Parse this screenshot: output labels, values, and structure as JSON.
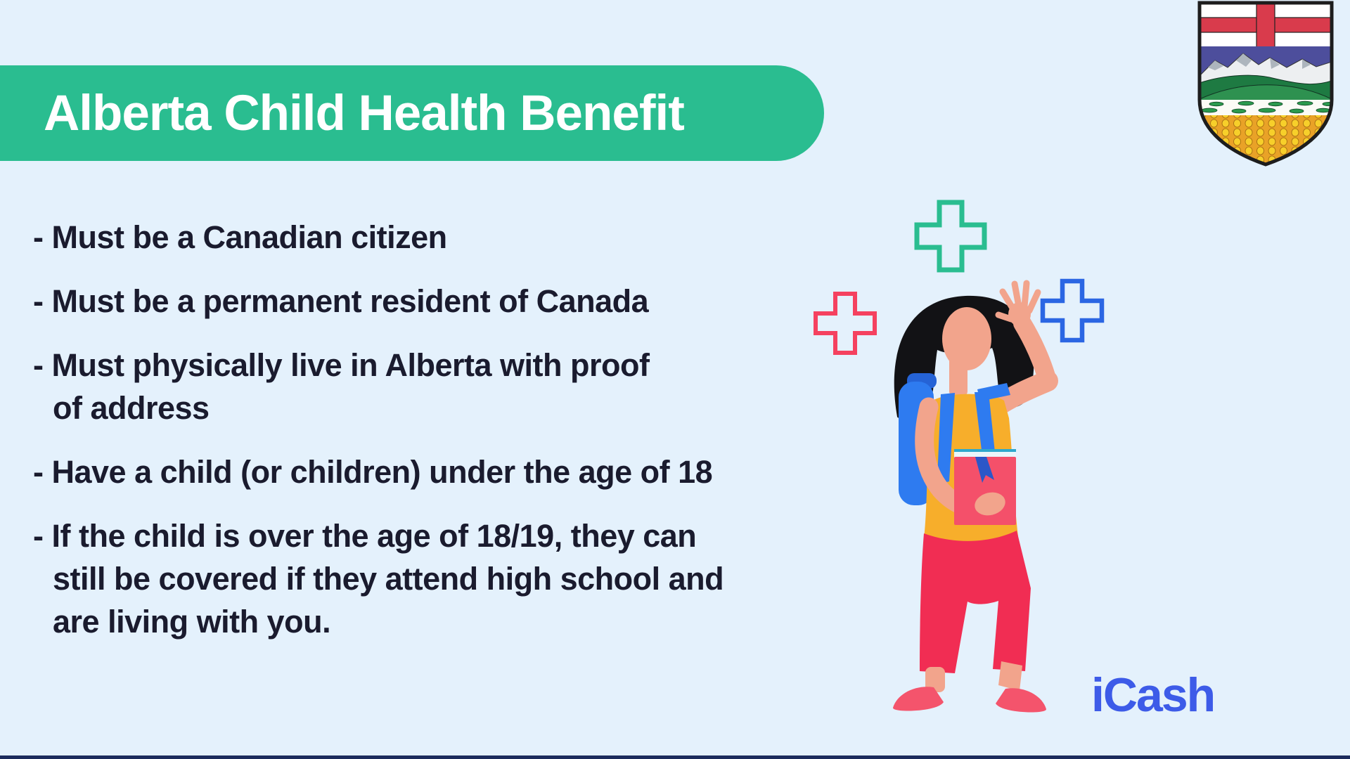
{
  "theme": {
    "background": "#E4F1FC",
    "banner_green": "#2ABD90",
    "banner_text": "#FFFFFF",
    "text_dark": "#1A1B2E",
    "logo_blue": "#3D5BE8",
    "bottom_bar": "#1B2B5C",
    "cross_green": "#2ABD90",
    "cross_red": "#F5415F",
    "cross_blue": "#2B66E3"
  },
  "header": {
    "title": "Alberta Child Health Benefit"
  },
  "bullets": [
    "- Must be a Canadian citizen",
    "- Must be a permanent resident of Canada",
    "- Must physically live in Alberta with proof\nof address",
    "- Have a child (or children) under the age of 18",
    "- If the child is over the age of 18/19, they can\nstill be covered if they attend high school and\nare living with you."
  ],
  "branding": {
    "logo_text": "iCash"
  },
  "illustration": {
    "description": "student with backpack holding a book and waving, surrounded by three outlined medical crosses",
    "palette": {
      "skin": "#F2A48C",
      "hair": "#121215",
      "shirt": "#F7AE2B",
      "backpack": "#2E7BF0",
      "backpack_dark": "#2563D6",
      "book": "#F4506A",
      "pants": "#F12D53",
      "shoes": "#F4546C"
    }
  },
  "emblem": {
    "name": "Alberta coat of arms shield"
  }
}
